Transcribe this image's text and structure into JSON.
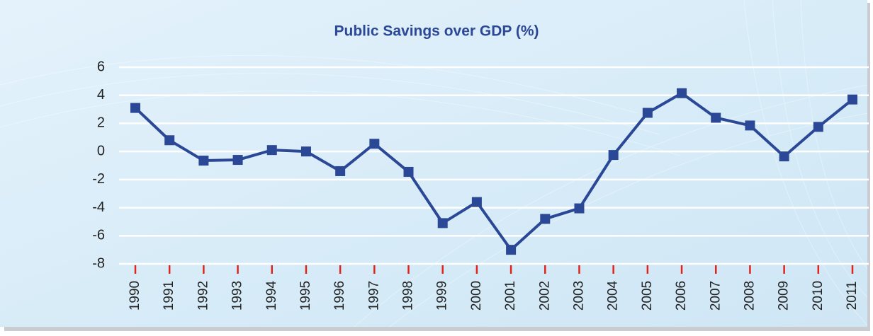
{
  "chart_data": {
    "type": "line",
    "title": "Public Savings over GDP (%)",
    "categories": [
      "1990",
      "1991",
      "1992",
      "1993",
      "1994",
      "1995",
      "1996",
      "1997",
      "1998",
      "1999",
      "2000",
      "2001",
      "2002",
      "2003",
      "2004",
      "2005",
      "2006",
      "2007",
      "2008",
      "2009",
      "2010",
      "2011"
    ],
    "series": [
      {
        "name": "Public Savings over GDP (%)",
        "color": "#2b4896",
        "values": [
          3.1,
          0.8,
          -0.65,
          -0.6,
          0.1,
          0.0,
          -1.4,
          0.55,
          -1.45,
          -5.1,
          -3.6,
          -7.0,
          -4.8,
          -4.05,
          -0.25,
          2.75,
          4.15,
          2.4,
          1.85,
          -0.35,
          1.75,
          3.7
        ]
      }
    ],
    "ylim": [
      -8,
      6
    ],
    "yticks": [
      -8,
      -6,
      -4,
      -2,
      0,
      2,
      4,
      6
    ],
    "grid": true
  }
}
